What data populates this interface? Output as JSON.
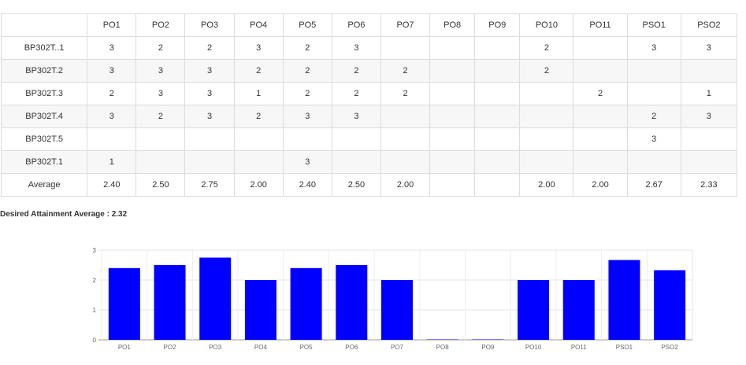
{
  "table": {
    "corner": "",
    "columns": [
      "PO1",
      "PO2",
      "PO3",
      "PO4",
      "PO5",
      "PO6",
      "PO7",
      "PO8",
      "PO9",
      "PO10",
      "PO11",
      "PSO1",
      "PSO2"
    ],
    "rows": [
      {
        "label": "BP302T..1",
        "cells": [
          "3",
          "2",
          "2",
          "3",
          "2",
          "3",
          "",
          "",
          "",
          "2",
          "",
          "3",
          "3"
        ]
      },
      {
        "label": "BP302T.2",
        "cells": [
          "3",
          "3",
          "3",
          "2",
          "2",
          "2",
          "2",
          "",
          "",
          "2",
          "",
          "",
          ""
        ]
      },
      {
        "label": "BP302T.3",
        "cells": [
          "2",
          "3",
          "3",
          "1",
          "2",
          "2",
          "2",
          "",
          "",
          "",
          "2",
          "",
          "1"
        ]
      },
      {
        "label": "BP302T.4",
        "cells": [
          "3",
          "2",
          "3",
          "2",
          "3",
          "3",
          "",
          "",
          "",
          "",
          "",
          "2",
          "3"
        ]
      },
      {
        "label": "BP302T.5",
        "cells": [
          "",
          "",
          "",
          "",
          "",
          "",
          "",
          "",
          "",
          "",
          "",
          "3",
          ""
        ]
      },
      {
        "label": "BP302T.1",
        "cells": [
          "1",
          "",
          "",
          "",
          "3",
          "",
          "",
          "",
          "",
          "",
          "",
          "",
          ""
        ]
      },
      {
        "label": "Average",
        "cells": [
          "2.40",
          "2.50",
          "2.75",
          "2.00",
          "2.40",
          "2.50",
          "2.00",
          "",
          "",
          "2.00",
          "2.00",
          "2.67",
          "2.33"
        ]
      }
    ]
  },
  "desired": {
    "label": "Desired Attainment Average : ",
    "value": "2.32"
  },
  "chart_data": {
    "type": "bar",
    "categories": [
      "PO1",
      "PO2",
      "PO3",
      "PO4",
      "PO5",
      "PO6",
      "PO7",
      "PO8",
      "PO9",
      "PO10",
      "PO11",
      "PSO1",
      "PSO2"
    ],
    "values": [
      2.4,
      2.5,
      2.75,
      2.0,
      2.4,
      2.5,
      2.0,
      0,
      0,
      2.0,
      2.0,
      2.67,
      2.33
    ],
    "ylim": [
      0,
      3
    ],
    "yticks": [
      "0",
      "1",
      "2",
      "3"
    ],
    "color": "#0000ff",
    "grid": true,
    "title": "",
    "xlabel": "",
    "ylabel": ""
  }
}
